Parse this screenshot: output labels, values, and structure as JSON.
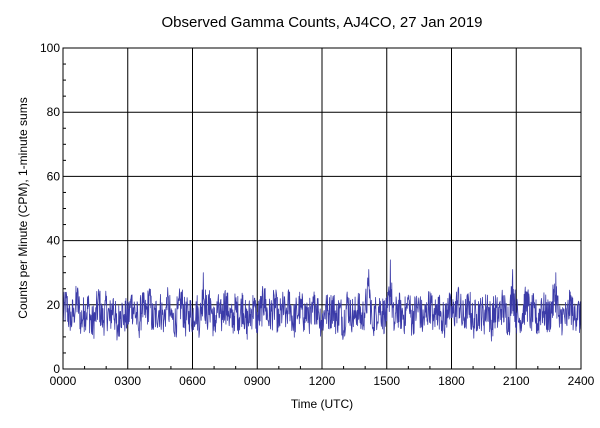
{
  "colors": {
    "background": "#ffffff",
    "series": "#3b3ba8",
    "grid": "#000000"
  },
  "chart_data": {
    "type": "line",
    "title": "Observed Gamma Counts, AJ4CO, 27 Jan 2019",
    "xlabel": "Time (UTC)",
    "ylabel": "Counts per Minute (CPM), 1-minute sums",
    "xlim": [
      0,
      1440
    ],
    "ylim": [
      0,
      100
    ],
    "x_unit": "minutes after 0000 UTC",
    "x_ticks": [
      {
        "value": 0,
        "label": "0000"
      },
      {
        "value": 180,
        "label": "0300"
      },
      {
        "value": 360,
        "label": "0600"
      },
      {
        "value": 540,
        "label": "0900"
      },
      {
        "value": 720,
        "label": "1200"
      },
      {
        "value": 900,
        "label": "1500"
      },
      {
        "value": 1080,
        "label": "1800"
      },
      {
        "value": 1260,
        "label": "2100"
      },
      {
        "value": 1440,
        "label": "2400"
      }
    ],
    "y_ticks": [
      {
        "value": 0,
        "label": "0"
      },
      {
        "value": 20,
        "label": "20"
      },
      {
        "value": 40,
        "label": "40"
      },
      {
        "value": 60,
        "label": "60"
      },
      {
        "value": 80,
        "label": "80"
      },
      {
        "value": 100,
        "label": "100"
      }
    ],
    "grid": true,
    "series": [
      {
        "color": "#3b3ba8",
        "x": [
          0,
          10,
          20,
          30,
          40,
          50,
          60,
          70,
          80,
          90,
          100,
          110,
          120,
          130,
          140,
          150,
          160,
          170,
          180,
          190,
          200,
          210,
          220,
          230,
          240,
          250,
          260,
          270,
          280,
          290,
          300,
          310,
          320,
          330,
          340,
          350,
          360,
          370,
          380,
          390,
          400,
          410,
          420,
          430,
          440,
          450,
          460,
          470,
          480,
          490,
          500,
          510,
          520,
          530,
          540,
          550,
          560,
          570,
          580,
          590,
          600,
          610,
          620,
          630,
          640,
          650,
          660,
          670,
          680,
          690,
          700,
          710,
          720,
          730,
          740,
          750,
          760,
          770,
          780,
          790,
          800,
          810,
          820,
          830,
          840,
          850,
          860,
          870,
          880,
          890,
          900,
          910,
          920,
          930,
          940,
          950,
          960,
          970,
          980,
          990,
          1000,
          1010,
          1020,
          1030,
          1040,
          1050,
          1060,
          1070,
          1080,
          1090,
          1100,
          1110,
          1120,
          1130,
          1140,
          1150,
          1160,
          1170,
          1180,
          1190,
          1200,
          1210,
          1220,
          1230,
          1240,
          1250,
          1260,
          1270,
          1280,
          1290,
          1300,
          1310,
          1320,
          1330,
          1340,
          1350,
          1360,
          1370,
          1380,
          1390,
          1400,
          1410,
          1420,
          1430,
          1440
        ],
        "values": [
          17,
          23,
          12,
          19,
          25,
          14,
          18,
          21,
          11,
          16,
          24,
          13,
          20,
          15,
          22,
          9,
          18,
          17,
          14,
          23,
          19,
          12,
          21,
          16,
          25,
          13,
          18,
          20,
          15,
          22,
          17,
          11,
          19,
          24,
          14,
          18,
          16,
          21,
          13,
          30,
          17,
          22,
          12,
          19,
          15,
          24,
          18,
          13,
          20,
          16,
          23,
          11,
          17,
          21,
          14,
          19,
          25,
          15,
          18,
          22,
          13,
          20,
          17,
          24,
          12,
          18,
          21,
          16,
          19,
          14,
          23,
          18,
          13,
          20,
          17,
          22,
          15,
          19,
          12,
          24,
          18,
          16,
          21,
          14,
          20,
          31,
          13,
          18,
          22,
          17,
          15,
          34,
          12,
          20,
          18,
          16,
          23,
          14,
          19,
          21,
          13,
          17,
          24,
          15,
          20,
          18,
          12,
          22,
          16,
          19,
          25,
          14,
          18,
          21,
          13,
          17,
          20,
          15,
          23,
          12,
          19,
          16,
          22,
          18,
          14,
          31,
          17,
          13,
          20,
          24,
          16,
          19,
          12,
          22,
          18,
          15,
          21,
          30,
          13,
          17,
          14,
          24,
          16,
          20,
          12
        ]
      }
    ]
  }
}
